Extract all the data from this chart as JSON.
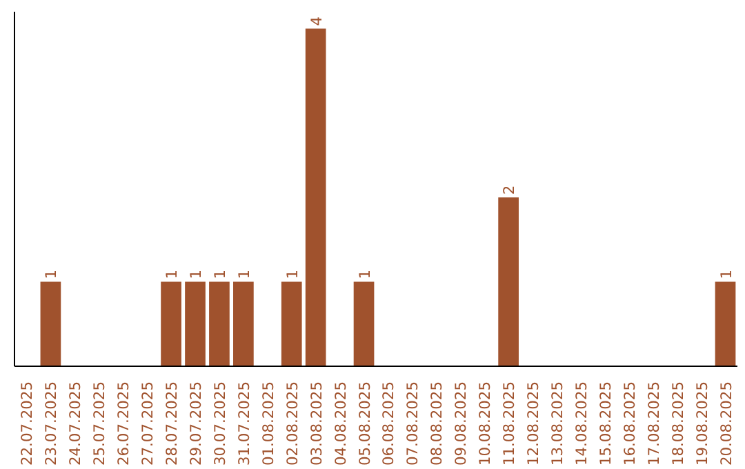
{
  "chart_data": {
    "type": "bar",
    "categories": [
      "22.07.2025",
      "23.07.2025",
      "24.07.2025",
      "25.07.2025",
      "26.07.2025",
      "27.07.2025",
      "28.07.2025",
      "29.07.2025",
      "30.07.2025",
      "31.07.2025",
      "01.08.2025",
      "02.08.2025",
      "03.08.2025",
      "04.08.2025",
      "05.08.2025",
      "06.08.2025",
      "07.08.2025",
      "08.08.2025",
      "09.08.2025",
      "10.08.2025",
      "11.08.2025",
      "12.08.2025",
      "13.08.2025",
      "14.08.2025",
      "15.08.2025",
      "16.08.2025",
      "17.08.2025",
      "18.08.2025",
      "19.08.2025",
      "20.08.2025"
    ],
    "values": [
      0,
      1,
      0,
      0,
      0,
      0,
      1,
      1,
      1,
      1,
      0,
      1,
      4,
      0,
      1,
      0,
      0,
      0,
      0,
      0,
      2,
      0,
      0,
      0,
      0,
      0,
      0,
      0,
      0,
      1
    ],
    "value_labels": [
      null,
      "1",
      null,
      null,
      null,
      null,
      "1",
      "1",
      "1",
      "1",
      null,
      "1",
      "4",
      null,
      "1",
      null,
      null,
      null,
      null,
      null,
      "2",
      null,
      null,
      null,
      null,
      null,
      null,
      null,
      null,
      "1"
    ],
    "color": "#a0522d",
    "grid": false,
    "tick_labels": "x"
  }
}
